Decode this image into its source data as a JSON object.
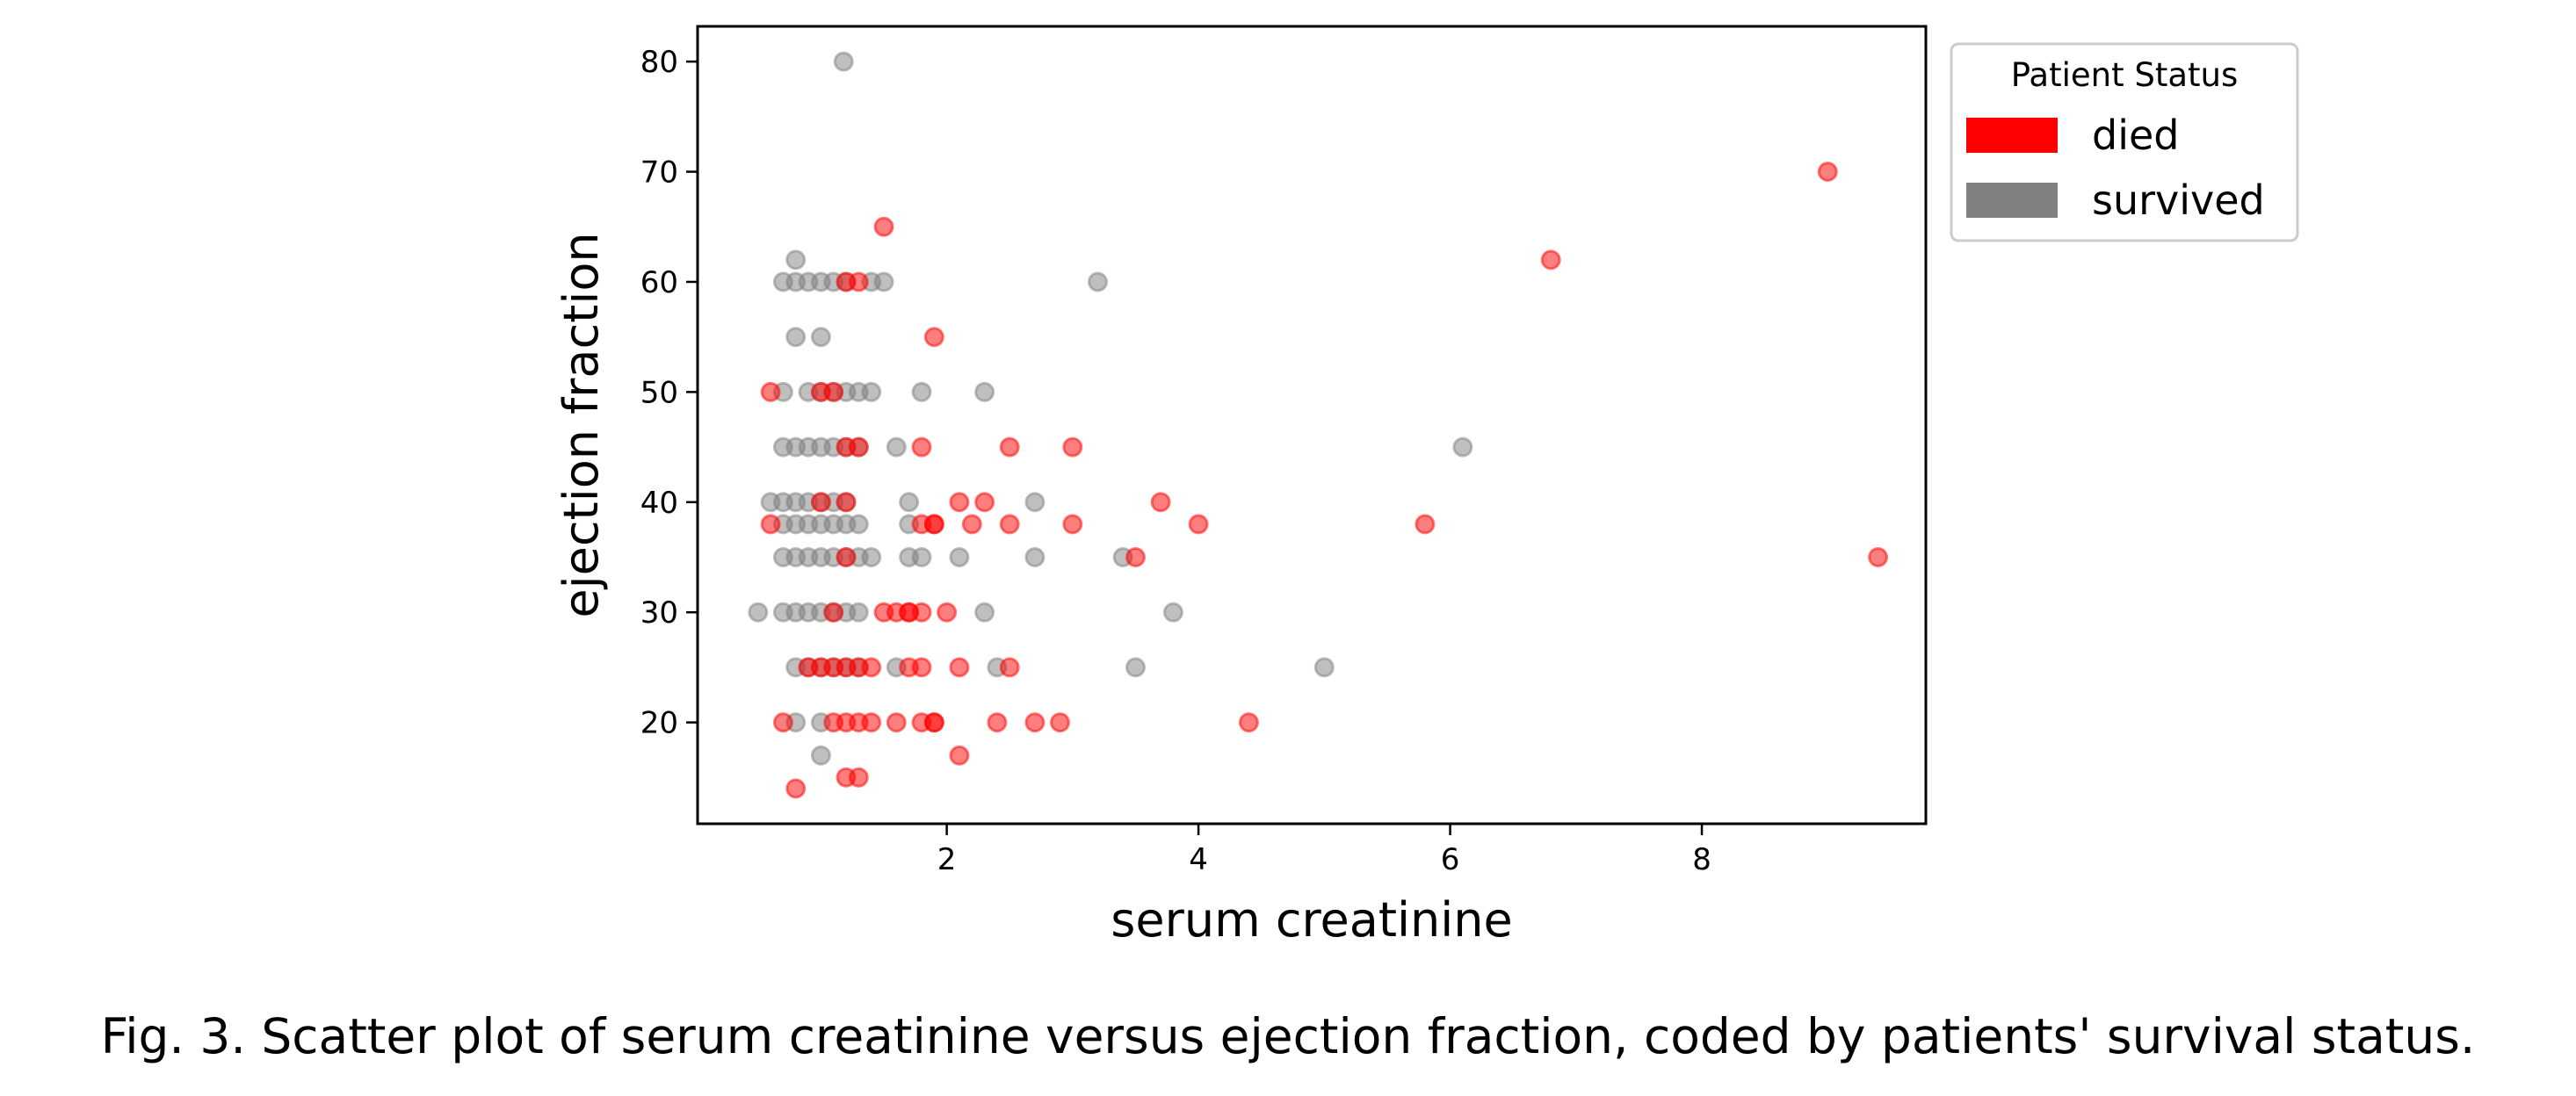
{
  "caption": "Fig. 3. Scatter plot of serum creatinine versus ejection fraction, coded by patients' survival status.",
  "chart_data": {
    "type": "scatter",
    "xlabel": "serum creatinine",
    "ylabel": "ejection fraction",
    "xlim": [
      0.02,
      9.78
    ],
    "ylim": [
      10.8,
      83.2
    ],
    "xticks": [
      2,
      4,
      6,
      8
    ],
    "yticks": [
      20,
      30,
      40,
      50,
      60,
      70,
      80
    ],
    "grid": false,
    "legend": {
      "title": "Patient Status",
      "placement": "outside top-right",
      "entries": [
        "died",
        "survived"
      ]
    },
    "series": [
      {
        "name": "died",
        "color": "#ff0000",
        "x": [
          9.0,
          6.8,
          9.4,
          5.8,
          1.5,
          1.9,
          3.0,
          2.5,
          1.8,
          2.1,
          2.3,
          3.7,
          4.0,
          2.2,
          3.0,
          2.5,
          3.5,
          0.6,
          1.0,
          1.1,
          1.2,
          1.3,
          1.9,
          1.8,
          1.9,
          1.7,
          1.1,
          1.5,
          1.6,
          1.7,
          1.8,
          2.0,
          1.9,
          0.9,
          1.0,
          1.1,
          1.2,
          1.3,
          1.4,
          1.7,
          1.8,
          2.1,
          2.5,
          0.7,
          1.1,
          1.2,
          1.3,
          1.4,
          1.6,
          1.8,
          1.9,
          2.4,
          2.7,
          2.9,
          4.4,
          2.1,
          1.2,
          1.3,
          0.8,
          1.2,
          1.3,
          1.2,
          1.0,
          0.6,
          1.2
        ],
        "y": [
          70,
          62,
          35,
          38,
          65,
          55,
          45,
          45,
          45,
          40,
          40,
          40,
          38,
          38,
          38,
          38,
          35,
          50,
          50,
          50,
          45,
          45,
          38,
          38,
          38,
          30,
          30,
          30,
          30,
          30,
          30,
          30,
          20,
          25,
          25,
          25,
          25,
          25,
          25,
          25,
          25,
          25,
          25,
          20,
          20,
          20,
          20,
          20,
          20,
          20,
          20,
          20,
          20,
          20,
          20,
          17,
          15,
          15,
          14,
          60,
          60,
          40,
          40,
          38,
          35
        ]
      },
      {
        "name": "survived",
        "color": "#808080",
        "x": [
          1.18,
          0.8,
          0.7,
          0.8,
          0.9,
          1.0,
          1.1,
          1.2,
          1.4,
          1.5,
          3.2,
          0.8,
          1.0,
          0.7,
          0.9,
          1.0,
          1.1,
          1.2,
          1.3,
          1.4,
          1.8,
          2.3,
          0.7,
          0.8,
          0.9,
          1.0,
          1.1,
          1.2,
          1.3,
          1.6,
          6.1,
          0.6,
          0.7,
          0.8,
          0.9,
          1.0,
          1.1,
          1.2,
          1.7,
          2.7,
          0.7,
          0.8,
          0.9,
          1.0,
          1.1,
          1.2,
          1.3,
          1.7,
          0.7,
          0.8,
          0.9,
          1.0,
          1.1,
          1.2,
          1.3,
          1.4,
          1.7,
          1.8,
          2.1,
          2.7,
          3.4,
          0.5,
          0.7,
          0.8,
          0.9,
          1.0,
          1.1,
          1.2,
          1.3,
          2.3,
          3.8,
          0.8,
          0.9,
          1.0,
          1.1,
          1.2,
          1.3,
          1.6,
          2.4,
          3.5,
          5.0,
          0.8,
          1.0,
          1.0
        ],
        "y": [
          80,
          62,
          60,
          60,
          60,
          60,
          60,
          60,
          60,
          60,
          60,
          55,
          55,
          50,
          50,
          50,
          50,
          50,
          50,
          50,
          50,
          50,
          45,
          45,
          45,
          45,
          45,
          45,
          45,
          45,
          45,
          40,
          40,
          40,
          40,
          40,
          40,
          40,
          40,
          40,
          38,
          38,
          38,
          38,
          38,
          38,
          38,
          38,
          35,
          35,
          35,
          35,
          35,
          35,
          35,
          35,
          35,
          35,
          35,
          35,
          35,
          30,
          30,
          30,
          30,
          30,
          30,
          30,
          30,
          30,
          30,
          25,
          25,
          25,
          25,
          25,
          25,
          25,
          25,
          25,
          25,
          20,
          20,
          17
        ]
      }
    ]
  }
}
